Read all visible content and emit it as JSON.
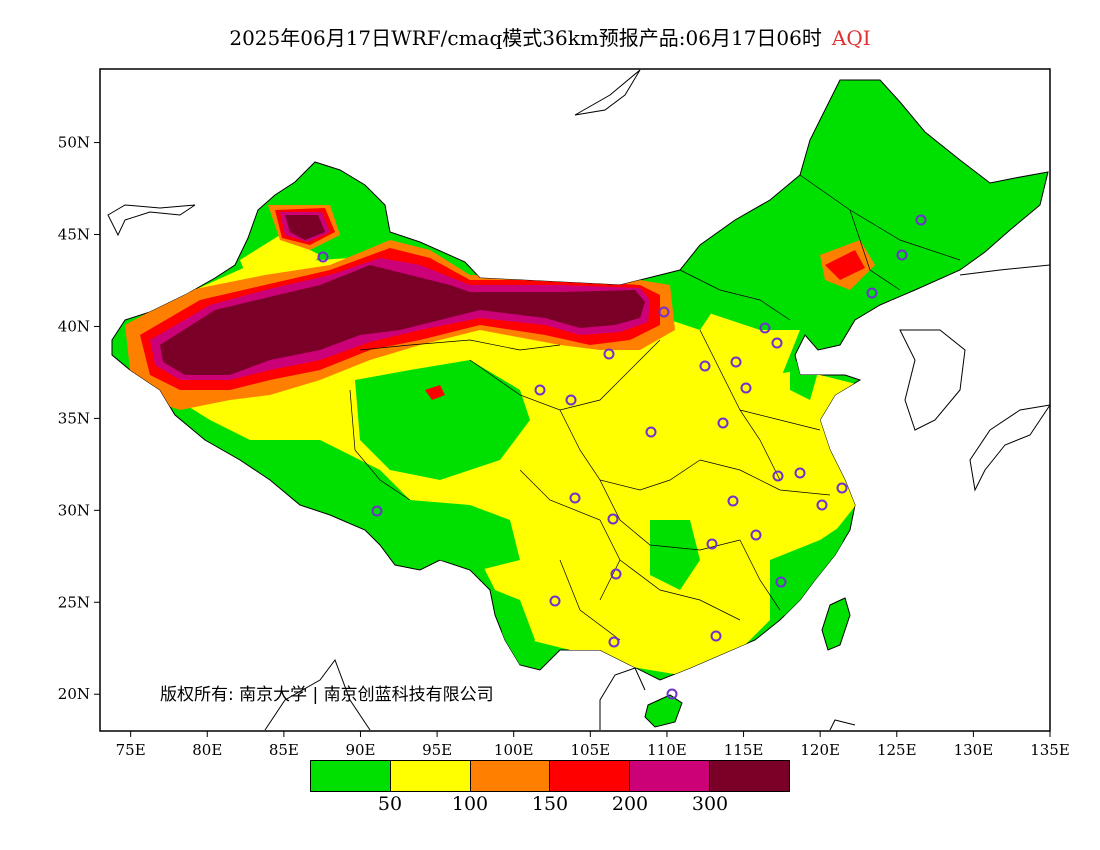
{
  "header": {
    "title_main": "2025年06月17日WRF/cmaq模式36km预报产品:06月17日06时",
    "title_var": "AQI"
  },
  "map": {
    "lon_ticks": [
      "75E",
      "80E",
      "85E",
      "90E",
      "95E",
      "100E",
      "105E",
      "110E",
      "115E",
      "120E",
      "125E",
      "130E",
      "135E"
    ],
    "lat_ticks": [
      "20N",
      "25N",
      "30N",
      "35N",
      "40N",
      "45N",
      "50N"
    ],
    "lon_range": [
      73,
      135
    ],
    "lat_range": [
      18,
      54
    ],
    "colors": {
      "good": "#00e000",
      "moderate": "#ffff00",
      "usg": "#ff8000",
      "unhealthy": "#ff0000",
      "very_unhealthy": "#cc0077",
      "hazardous": "#7a0028",
      "station": "#7030d0"
    }
  },
  "copyright": "版权所有: 南京大学 | 南京创蓝科技有限公司",
  "legend": {
    "colors": [
      "#00e000",
      "#ffff00",
      "#ff8000",
      "#ff0000",
      "#cc0077",
      "#7a0028"
    ],
    "labels": [
      "50",
      "100",
      "150",
      "200",
      "300"
    ]
  }
}
